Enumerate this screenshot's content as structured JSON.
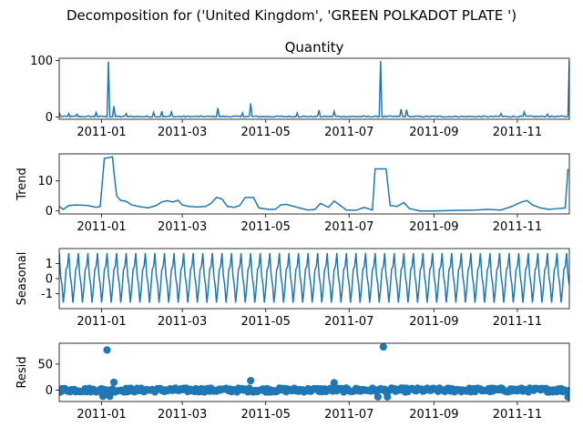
{
  "colors": {
    "series": "#1f77b4",
    "axis": "#000000",
    "background": "#ffffff"
  },
  "chart_data": {
    "type": "line",
    "suptitle": "Decomposition for ('United Kingdom', 'GREEN POLKADOT PLATE ')",
    "x_range": [
      "2010-12-01",
      "2011-12-09"
    ],
    "x_ticks": [
      "2011-01",
      "2011-03",
      "2011-05",
      "2011-07",
      "2011-09",
      "2011-11"
    ],
    "x_tick_dates": [
      "2011-01-01",
      "2011-03-01",
      "2011-05-01",
      "2011-07-01",
      "2011-09-01",
      "2011-11-01"
    ],
    "panels": [
      {
        "key": "observed",
        "title": "Quantity",
        "ylabel": "",
        "ylim": [
          -4,
          104
        ],
        "yticks": [
          0,
          100
        ],
        "style": "line",
        "baseline": 1,
        "noise": 1.2,
        "spikes": [
          {
            "date": "2010-12-01",
            "value": 8
          },
          {
            "date": "2010-12-08",
            "value": 6
          },
          {
            "date": "2010-12-14",
            "value": 5
          },
          {
            "date": "2010-12-28",
            "value": 8
          },
          {
            "date": "2011-01-06",
            "value": 98
          },
          {
            "date": "2011-01-10",
            "value": 19
          },
          {
            "date": "2011-01-19",
            "value": 6
          },
          {
            "date": "2011-02-08",
            "value": 8
          },
          {
            "date": "2011-02-14",
            "value": 10
          },
          {
            "date": "2011-02-21",
            "value": 9
          },
          {
            "date": "2011-03-27",
            "value": 16
          },
          {
            "date": "2011-04-14",
            "value": 7
          },
          {
            "date": "2011-04-20",
            "value": 24
          },
          {
            "date": "2011-05-24",
            "value": 7
          },
          {
            "date": "2011-06-09",
            "value": 12
          },
          {
            "date": "2011-06-20",
            "value": 10
          },
          {
            "date": "2011-07-24",
            "value": 99
          },
          {
            "date": "2011-08-08",
            "value": 14
          },
          {
            "date": "2011-08-12",
            "value": 13
          },
          {
            "date": "2011-10-20",
            "value": 6
          },
          {
            "date": "2011-11-06",
            "value": 9
          },
          {
            "date": "2011-11-23",
            "value": 5
          },
          {
            "date": "2011-12-09",
            "value": 100
          }
        ]
      },
      {
        "key": "trend",
        "title": "",
        "ylabel": "Trend",
        "ylim": [
          -1,
          19
        ],
        "yticks": [
          0,
          10
        ],
        "style": "line",
        "points": [
          [
            "2010-12-01",
            1.5
          ],
          [
            "2010-12-04",
            0.5
          ],
          [
            "2010-12-08",
            1.8
          ],
          [
            "2010-12-14",
            2
          ],
          [
            "2010-12-22",
            1.8
          ],
          [
            "2010-12-28",
            1.2
          ],
          [
            "2010-12-31",
            1.5
          ],
          [
            "2011-01-03",
            17.5
          ],
          [
            "2011-01-09",
            18
          ],
          [
            "2011-01-10",
            13
          ],
          [
            "2011-01-12",
            5
          ],
          [
            "2011-01-15",
            3.5
          ],
          [
            "2011-01-19",
            3.2
          ],
          [
            "2011-01-23",
            2
          ],
          [
            "2011-01-28",
            1.5
          ],
          [
            "2011-02-04",
            1
          ],
          [
            "2011-02-10",
            1.8
          ],
          [
            "2011-02-14",
            3
          ],
          [
            "2011-02-18",
            3.4
          ],
          [
            "2011-02-22",
            3
          ],
          [
            "2011-02-26",
            3.5
          ],
          [
            "2011-03-01",
            2
          ],
          [
            "2011-03-06",
            1.5
          ],
          [
            "2011-03-12",
            1.3
          ],
          [
            "2011-03-18",
            1.5
          ],
          [
            "2011-03-22",
            2.5
          ],
          [
            "2011-03-26",
            4.5
          ],
          [
            "2011-03-30",
            4
          ],
          [
            "2011-04-03",
            1.5
          ],
          [
            "2011-04-08",
            1.2
          ],
          [
            "2011-04-12",
            1.8
          ],
          [
            "2011-04-16",
            4.5
          ],
          [
            "2011-04-22",
            4.5
          ],
          [
            "2011-04-26",
            1
          ],
          [
            "2011-05-03",
            0.5
          ],
          [
            "2011-05-08",
            0.5
          ],
          [
            "2011-05-12",
            2
          ],
          [
            "2011-05-16",
            2.2
          ],
          [
            "2011-05-24",
            1.2
          ],
          [
            "2011-06-01",
            0.3
          ],
          [
            "2011-06-06",
            0.5
          ],
          [
            "2011-06-10",
            2.5
          ],
          [
            "2011-06-16",
            1.2
          ],
          [
            "2011-06-20",
            3.3
          ],
          [
            "2011-06-24",
            2
          ],
          [
            "2011-06-29",
            0.3
          ],
          [
            "2011-07-06",
            0.2
          ],
          [
            "2011-07-12",
            1.2
          ],
          [
            "2011-07-18",
            0.3
          ],
          [
            "2011-07-20",
            14
          ],
          [
            "2011-07-28",
            14
          ],
          [
            "2011-07-31",
            1.8
          ],
          [
            "2011-08-05",
            1.5
          ],
          [
            "2011-08-10",
            2.8
          ],
          [
            "2011-08-14",
            0.8
          ],
          [
            "2011-08-22",
            0
          ],
          [
            "2011-09-01",
            0
          ],
          [
            "2011-09-10",
            0.1
          ],
          [
            "2011-09-20",
            0.2
          ],
          [
            "2011-10-01",
            0.3
          ],
          [
            "2011-10-10",
            0.5
          ],
          [
            "2011-10-20",
            0.3
          ],
          [
            "2011-10-28",
            1.5
          ],
          [
            "2011-11-03",
            2.8
          ],
          [
            "2011-11-08",
            3.5
          ],
          [
            "2011-11-12",
            2
          ],
          [
            "2011-11-18",
            1
          ],
          [
            "2011-11-24",
            0.5
          ],
          [
            "2011-12-01",
            0.8
          ],
          [
            "2011-12-06",
            1
          ],
          [
            "2011-12-08",
            14
          ]
        ]
      },
      {
        "key": "seasonal",
        "title": "",
        "ylabel": "Seasonal",
        "ylim": [
          -2.0,
          2.0
        ],
        "yticks": [
          1,
          0,
          -1
        ],
        "style": "line",
        "period_days": 7,
        "pattern": [
          1.7,
          0.2,
          -0.4,
          -1.6,
          -0.7,
          0.6,
          0.8
        ]
      },
      {
        "key": "resid",
        "title": "",
        "ylabel": "Resid",
        "ylim": [
          -22,
          90
        ],
        "yticks": [
          0,
          50
        ],
        "style": "scatter",
        "baseline": 0,
        "noise": 4,
        "outliers": [
          {
            "date": "2011-01-05",
            "value": 77
          },
          {
            "date": "2011-01-10",
            "value": 15
          },
          {
            "date": "2011-01-02",
            "value": -12
          },
          {
            "date": "2011-01-07",
            "value": -12
          },
          {
            "date": "2011-04-20",
            "value": 18
          },
          {
            "date": "2011-06-20",
            "value": 14
          },
          {
            "date": "2011-07-26",
            "value": 83
          },
          {
            "date": "2011-07-22",
            "value": -13
          },
          {
            "date": "2011-07-29",
            "value": -13
          },
          {
            "date": "2011-12-08",
            "value": -13
          }
        ]
      }
    ]
  }
}
